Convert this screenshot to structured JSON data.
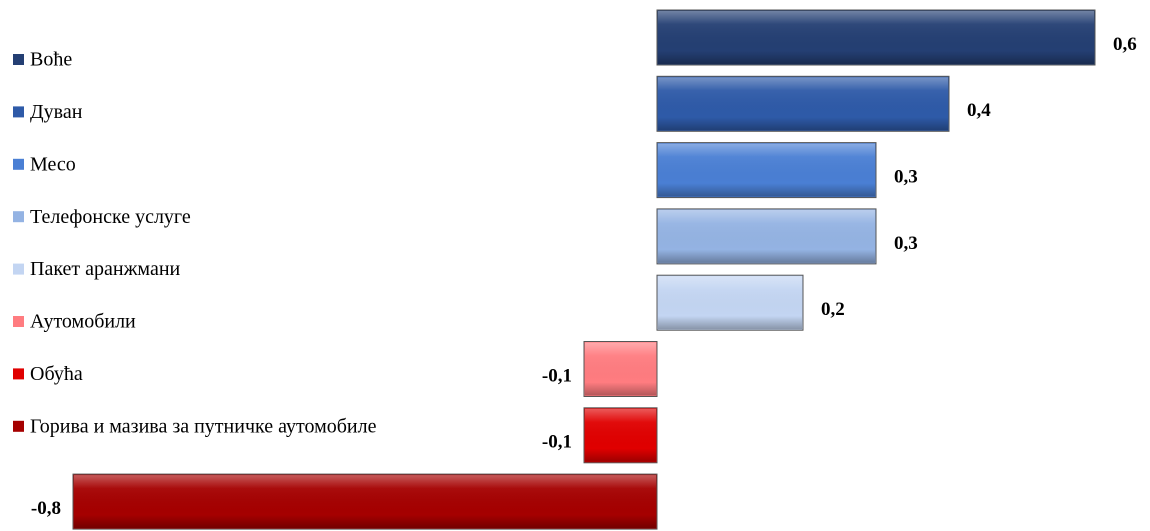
{
  "chart_data": {
    "type": "bar",
    "orientation": "horizontal",
    "categories": [
      "Воће",
      "Дуван",
      "Месо",
      "Телефонске услуге",
      "Пакет аранжмани",
      "Аутомобили",
      "Обућа",
      "Горива и мазива за путничке аутомобиле"
    ],
    "values": [
      0.6,
      0.4,
      0.3,
      0.3,
      0.2,
      -0.1,
      -0.1,
      -0.8
    ],
    "value_labels": [
      "0,6",
      "0,4",
      "0,3",
      "0,3",
      "0,2",
      "-0,1",
      "-0,1",
      "-0,8"
    ],
    "colors": [
      "#243f73",
      "#2e5aa8",
      "#4a7fd4",
      "#94b3e3",
      "#c3d5f2",
      "#ff7c80",
      "#e00000",
      "#a50000"
    ],
    "legend": "left"
  }
}
